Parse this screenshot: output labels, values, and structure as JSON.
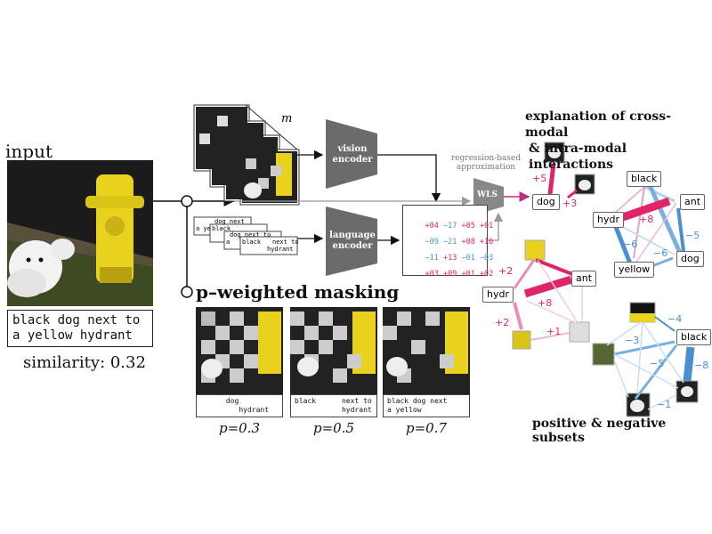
{
  "input_title": "input",
  "caption_lines": [
    "black dog next to",
    "a yellow hydrant"
  ],
  "similarity_text": "similarity: 0.32",
  "m_label": "m",
  "vision_encoder": [
    "vision",
    "encoder"
  ],
  "language_encoder": [
    "language",
    "encoder"
  ],
  "regression_label": [
    "regression-based",
    "approximation"
  ],
  "wls_label": "WLS",
  "text_stack": [
    "dog next",
    "a ye",
    "black",
    "dog next to",
    "a",
    "black",
    "next to",
    "hydrant"
  ],
  "matrix_rows": [
    [
      "+04",
      "−17",
      "+05",
      "+01"
    ],
    [
      "−09",
      "−21",
      "+08",
      "+16"
    ],
    [
      "−11",
      "+13",
      "−01",
      "−03"
    ],
    [
      "+03",
      "+09",
      "+01",
      "+02"
    ]
  ],
  "masking_title": "p–weighted masking",
  "thumbnails": [
    {
      "caption": [
        "      dog",
        "         hydrant"
      ],
      "p": "p=0.3"
    },
    {
      "caption": [
        "black      next to",
        "           hydrant"
      ],
      "p": "p=0.5"
    },
    {
      "caption": [
        "black dog next",
        "a yellow"
      ],
      "p": "p=0.7"
    }
  ],
  "cross_title": [
    "explanation of cross-modal",
    "& intra-modal interactions"
  ],
  "subsets_title": "positive & negative subsets",
  "cross_modal_graph": {
    "nodes": [
      "dog"
    ],
    "weights": [
      "+5",
      "+3"
    ]
  },
  "intra_graph": {
    "nodes": [
      "black",
      "ant",
      "hydr",
      "yellow",
      "dog"
    ],
    "weights": [
      "+8",
      "−6",
      "−5",
      "−6"
    ]
  },
  "positive_graph": {
    "nodes": [
      "hydr",
      "ant"
    ],
    "weights": [
      "+2",
      "+8",
      "+2",
      "+1"
    ]
  },
  "negative_graph": {
    "nodes": [
      "black"
    ],
    "weights": [
      "−4",
      "−3",
      "−5",
      "−8",
      "−1"
    ]
  },
  "colors": {
    "positive": "#e0246a",
    "negative": "#4a90d0",
    "encoder": "#6b6b6b",
    "hydrant": "#e8d21e",
    "night": "#1b1b1b"
  }
}
